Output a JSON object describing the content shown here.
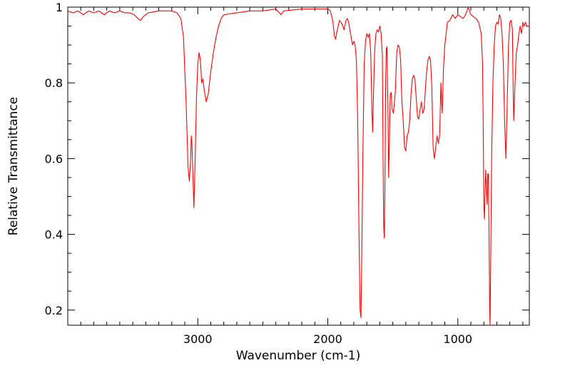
{
  "chart_data": {
    "type": "line",
    "title": "",
    "xlabel": "Wavenumber (cm-1)",
    "ylabel": "Relative Transmittance",
    "x_reversed": true,
    "xlim": [
      4000,
      450
    ],
    "ylim": [
      0.16,
      1.0
    ],
    "grid": false,
    "legend": "none",
    "x_ticks": [
      {
        "value": 3000,
        "label": "3000"
      },
      {
        "value": 2000,
        "label": "2000"
      },
      {
        "value": 1000,
        "label": "1000"
      }
    ],
    "y_ticks": [
      {
        "value": 0.2,
        "label": "0.2"
      },
      {
        "value": 0.4,
        "label": "0.4"
      },
      {
        "value": 0.6,
        "label": "0.6"
      },
      {
        "value": 0.8,
        "label": "0.8"
      },
      {
        "value": 1.0,
        "label": "1"
      }
    ],
    "series": [
      {
        "color": "#ff0000",
        "points": [
          [
            4000,
            0.99
          ],
          [
            3960,
            0.985
          ],
          [
            3920,
            0.99
          ],
          [
            3880,
            0.98
          ],
          [
            3840,
            0.99
          ],
          [
            3800,
            0.985
          ],
          [
            3760,
            0.99
          ],
          [
            3720,
            0.98
          ],
          [
            3680,
            0.99
          ],
          [
            3640,
            0.985
          ],
          [
            3600,
            0.99
          ],
          [
            3560,
            0.985
          ],
          [
            3520,
            0.985
          ],
          [
            3490,
            0.98
          ],
          [
            3460,
            0.97
          ],
          [
            3440,
            0.965
          ],
          [
            3420,
            0.975
          ],
          [
            3380,
            0.985
          ],
          [
            3300,
            0.99
          ],
          [
            3200,
            0.99
          ],
          [
            3160,
            0.985
          ],
          [
            3130,
            0.97
          ],
          [
            3110,
            0.92
          ],
          [
            3090,
            0.75
          ],
          [
            3075,
            0.58
          ],
          [
            3065,
            0.54
          ],
          [
            3055,
            0.6
          ],
          [
            3050,
            0.66
          ],
          [
            3045,
            0.64
          ],
          [
            3030,
            0.47
          ],
          [
            3020,
            0.6
          ],
          [
            3010,
            0.76
          ],
          [
            3000,
            0.85
          ],
          [
            2990,
            0.88
          ],
          [
            2980,
            0.86
          ],
          [
            2970,
            0.8
          ],
          [
            2960,
            0.81
          ],
          [
            2950,
            0.78
          ],
          [
            2935,
            0.75
          ],
          [
            2920,
            0.77
          ],
          [
            2900,
            0.83
          ],
          [
            2880,
            0.88
          ],
          [
            2860,
            0.92
          ],
          [
            2840,
            0.95
          ],
          [
            2820,
            0.97
          ],
          [
            2800,
            0.98
          ],
          [
            2700,
            0.985
          ],
          [
            2600,
            0.99
          ],
          [
            2500,
            0.99
          ],
          [
            2400,
            0.995
          ],
          [
            2360,
            0.98
          ],
          [
            2340,
            0.99
          ],
          [
            2200,
            0.995
          ],
          [
            2100,
            0.995
          ],
          [
            2000,
            0.995
          ],
          [
            1980,
            0.99
          ],
          [
            1960,
            0.96
          ],
          [
            1950,
            0.925
          ],
          [
            1940,
            0.915
          ],
          [
            1930,
            0.935
          ],
          [
            1910,
            0.965
          ],
          [
            1890,
            0.955
          ],
          [
            1875,
            0.94
          ],
          [
            1860,
            0.965
          ],
          [
            1850,
            0.97
          ],
          [
            1840,
            0.96
          ],
          [
            1830,
            0.94
          ],
          [
            1820,
            0.92
          ],
          [
            1810,
            0.9
          ],
          [
            1800,
            0.91
          ],
          [
            1790,
            0.9
          ],
          [
            1780,
            0.86
          ],
          [
            1770,
            0.7
          ],
          [
            1760,
            0.4
          ],
          [
            1752,
            0.2
          ],
          [
            1745,
            0.18
          ],
          [
            1740,
            0.3
          ],
          [
            1730,
            0.62
          ],
          [
            1720,
            0.85
          ],
          [
            1710,
            0.91
          ],
          [
            1700,
            0.93
          ],
          [
            1690,
            0.92
          ],
          [
            1680,
            0.93
          ],
          [
            1670,
            0.88
          ],
          [
            1660,
            0.72
          ],
          [
            1655,
            0.67
          ],
          [
            1650,
            0.75
          ],
          [
            1640,
            0.88
          ],
          [
            1630,
            0.93
          ],
          [
            1620,
            0.94
          ],
          [
            1610,
            0.935
          ],
          [
            1600,
            0.95
          ],
          [
            1590,
            0.93
          ],
          [
            1580,
            0.87
          ],
          [
            1575,
            0.6
          ],
          [
            1570,
            0.42
          ],
          [
            1565,
            0.39
          ],
          [
            1560,
            0.55
          ],
          [
            1555,
            0.8
          ],
          [
            1550,
            0.89
          ],
          [
            1545,
            0.895
          ],
          [
            1538,
            0.75
          ],
          [
            1532,
            0.55
          ],
          [
            1526,
            0.65
          ],
          [
            1520,
            0.77
          ],
          [
            1513,
            0.775
          ],
          [
            1505,
            0.73
          ],
          [
            1495,
            0.72
          ],
          [
            1480,
            0.78
          ],
          [
            1470,
            0.88
          ],
          [
            1460,
            0.9
          ],
          [
            1450,
            0.895
          ],
          [
            1440,
            0.86
          ],
          [
            1430,
            0.75
          ],
          [
            1420,
            0.7
          ],
          [
            1410,
            0.63
          ],
          [
            1400,
            0.62
          ],
          [
            1390,
            0.66
          ],
          [
            1380,
            0.67
          ],
          [
            1370,
            0.7
          ],
          [
            1360,
            0.77
          ],
          [
            1350,
            0.81
          ],
          [
            1340,
            0.82
          ],
          [
            1330,
            0.81
          ],
          [
            1320,
            0.76
          ],
          [
            1310,
            0.71
          ],
          [
            1300,
            0.705
          ],
          [
            1290,
            0.73
          ],
          [
            1280,
            0.75
          ],
          [
            1270,
            0.72
          ],
          [
            1260,
            0.73
          ],
          [
            1250,
            0.78
          ],
          [
            1240,
            0.83
          ],
          [
            1230,
            0.86
          ],
          [
            1220,
            0.87
          ],
          [
            1210,
            0.86
          ],
          [
            1200,
            0.79
          ],
          [
            1190,
            0.63
          ],
          [
            1180,
            0.6
          ],
          [
            1170,
            0.63
          ],
          [
            1160,
            0.66
          ],
          [
            1150,
            0.64
          ],
          [
            1140,
            0.66
          ],
          [
            1130,
            0.8
          ],
          [
            1125,
            0.75
          ],
          [
            1120,
            0.72
          ],
          [
            1110,
            0.84
          ],
          [
            1100,
            0.9
          ],
          [
            1090,
            0.93
          ],
          [
            1080,
            0.96
          ],
          [
            1060,
            0.965
          ],
          [
            1040,
            0.98
          ],
          [
            1020,
            0.97
          ],
          [
            1000,
            0.98
          ],
          [
            980,
            0.975
          ],
          [
            960,
            0.97
          ],
          [
            940,
            0.98
          ],
          [
            920,
            1.0
          ],
          [
            900,
            0.98
          ],
          [
            880,
            0.975
          ],
          [
            860,
            0.97
          ],
          [
            840,
            0.96
          ],
          [
            820,
            0.93
          ],
          [
            810,
            0.85
          ],
          [
            805,
            0.7
          ],
          [
            800,
            0.48
          ],
          [
            795,
            0.44
          ],
          [
            790,
            0.52
          ],
          [
            785,
            0.57
          ],
          [
            780,
            0.52
          ],
          [
            775,
            0.48
          ],
          [
            770,
            0.56
          ],
          [
            765,
            0.56
          ],
          [
            760,
            0.4
          ],
          [
            755,
            0.2
          ],
          [
            752,
            0.16
          ],
          [
            748,
            0.3
          ],
          [
            740,
            0.6
          ],
          [
            730,
            0.8
          ],
          [
            720,
            0.9
          ],
          [
            710,
            0.95
          ],
          [
            700,
            0.96
          ],
          [
            690,
            0.955
          ],
          [
            680,
            0.98
          ],
          [
            670,
            0.97
          ],
          [
            660,
            0.93
          ],
          [
            650,
            0.85
          ],
          [
            640,
            0.7
          ],
          [
            630,
            0.6
          ],
          [
            620,
            0.75
          ],
          [
            610,
            0.9
          ],
          [
            600,
            0.96
          ],
          [
            590,
            0.965
          ],
          [
            580,
            0.94
          ],
          [
            575,
            0.8
          ],
          [
            570,
            0.7
          ],
          [
            560,
            0.8
          ],
          [
            550,
            0.88
          ],
          [
            540,
            0.9
          ],
          [
            530,
            0.93
          ],
          [
            520,
            0.95
          ],
          [
            510,
            0.93
          ],
          [
            500,
            0.96
          ],
          [
            490,
            0.95
          ],
          [
            480,
            0.96
          ],
          [
            470,
            0.95
          ],
          [
            460,
            0.95
          ],
          [
            450,
            0.95
          ]
        ]
      }
    ]
  }
}
